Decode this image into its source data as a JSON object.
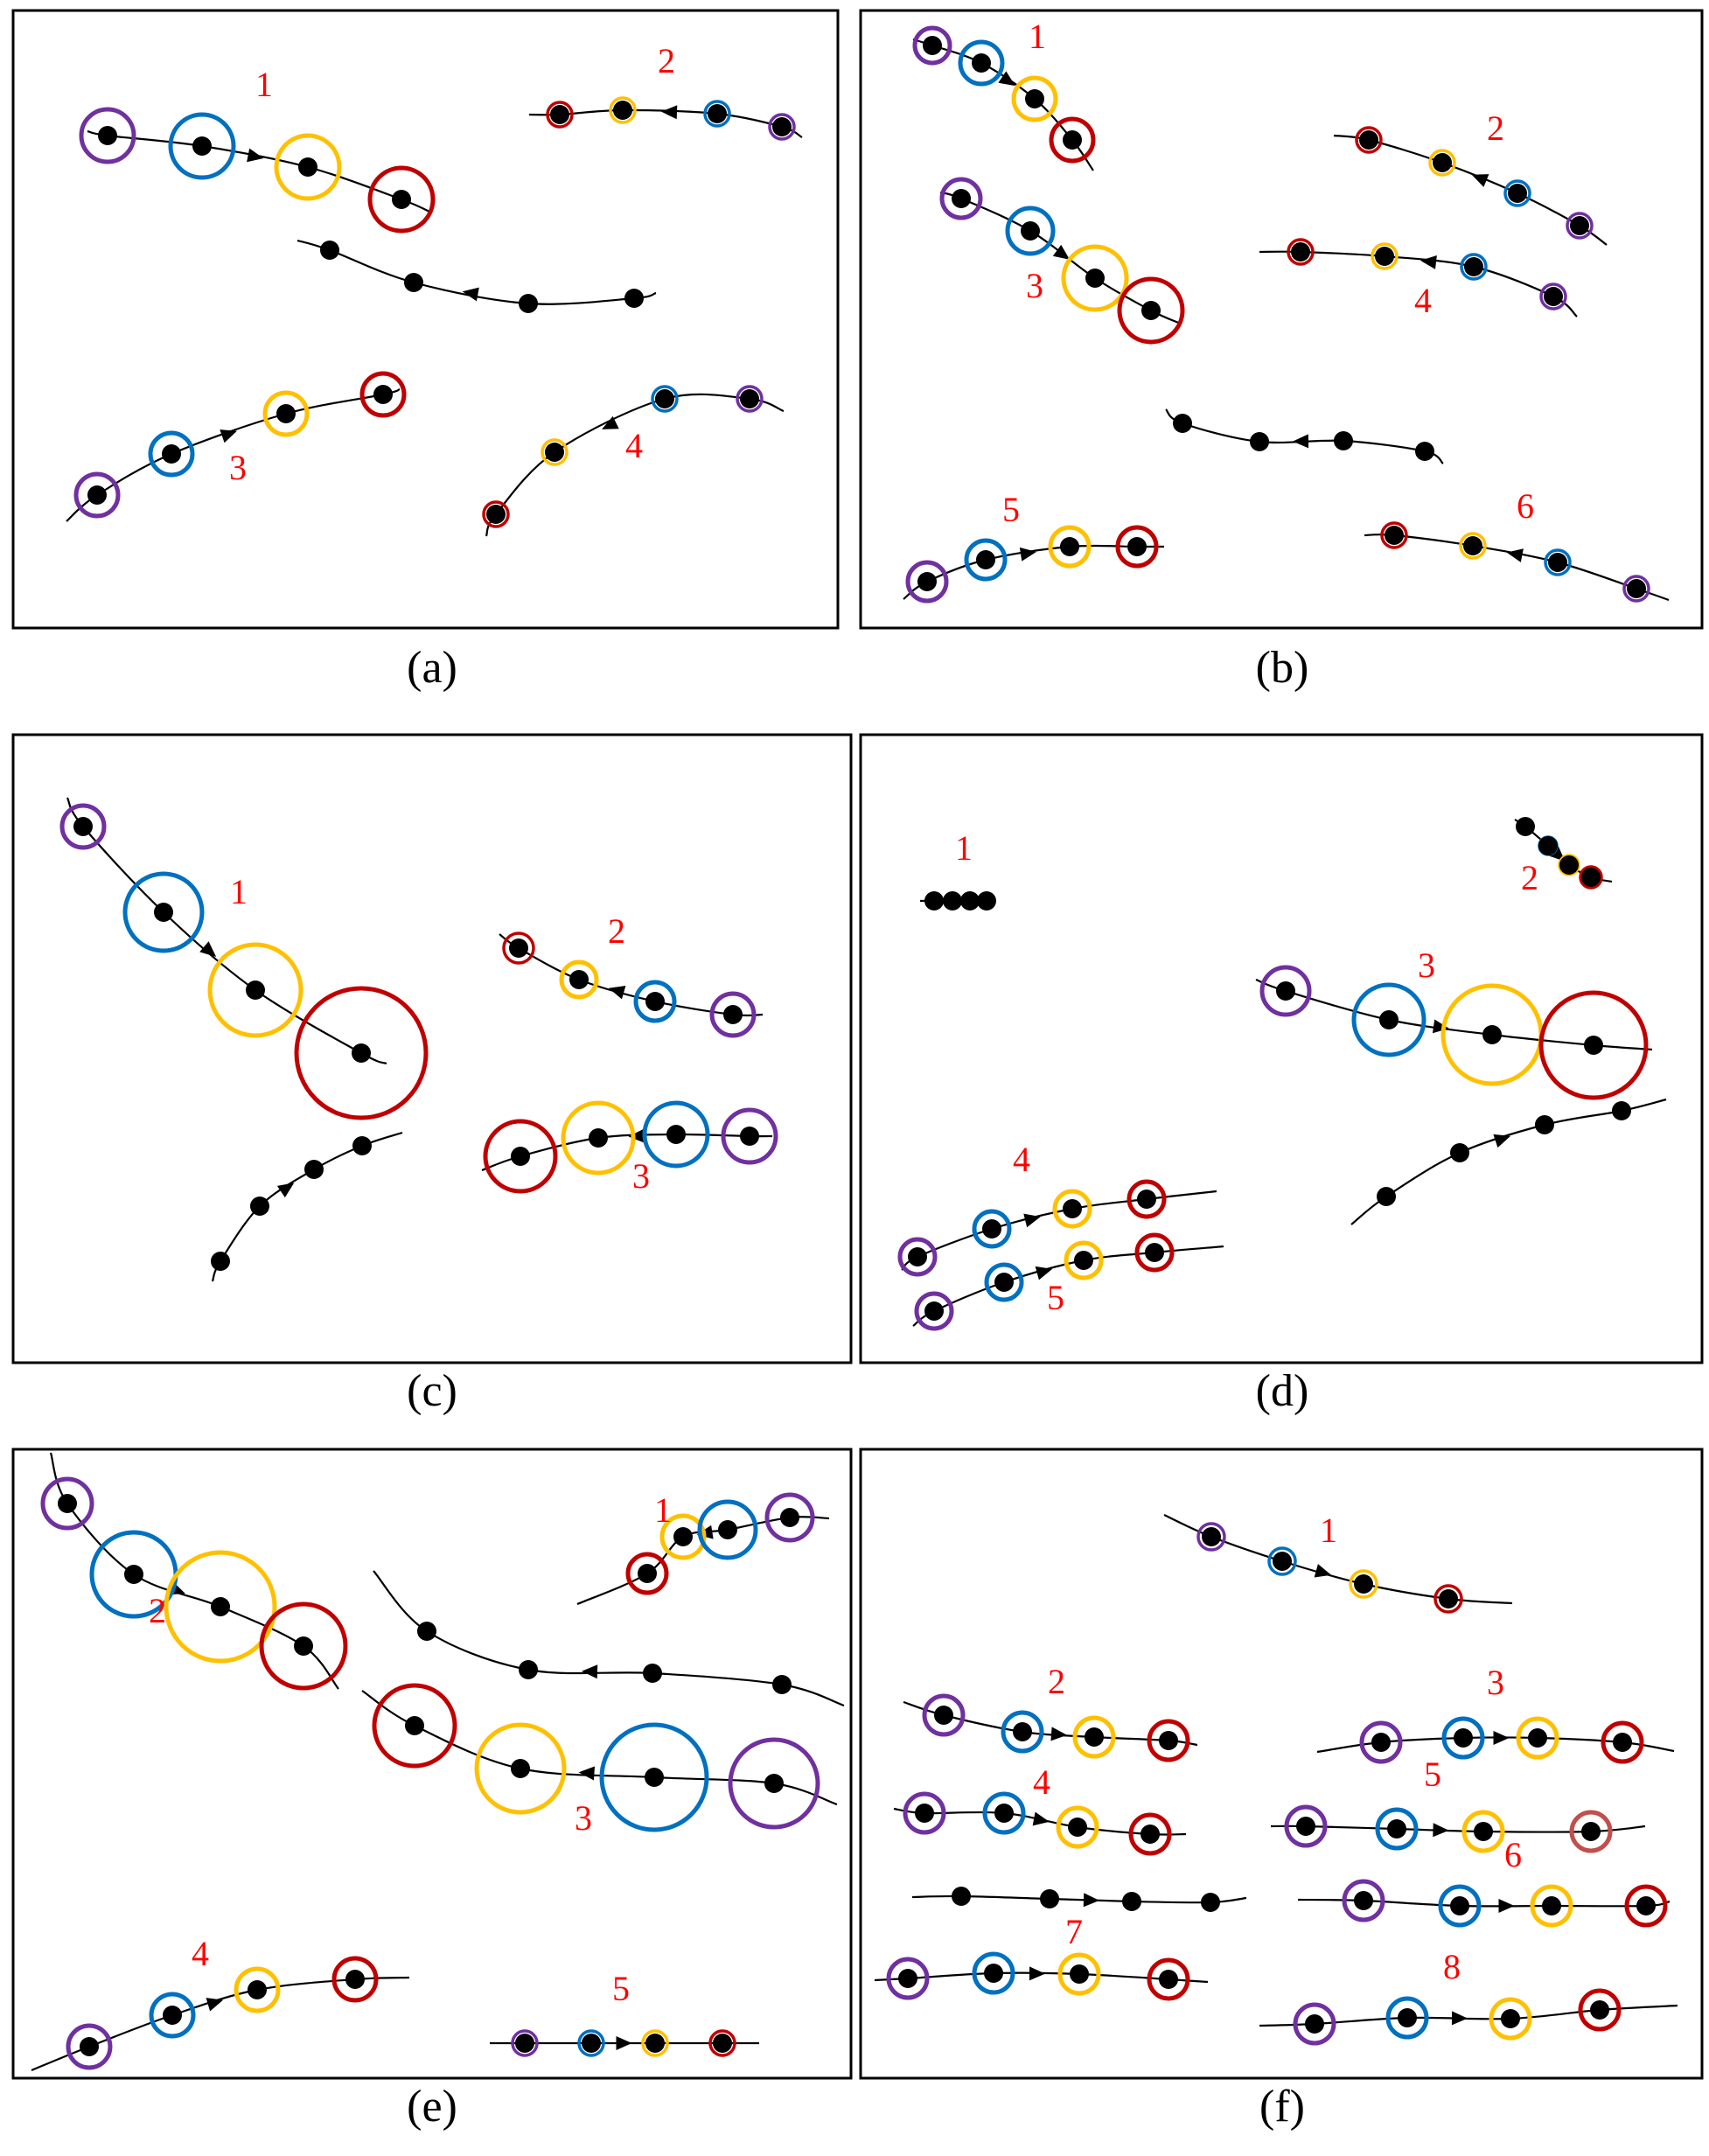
{
  "colors": {
    "purple": "#7030A0",
    "blue": "#0070C0",
    "yellow": "#FFC000",
    "red": "#C00000",
    "brown_red": "#C0504D",
    "label": "#FF0000",
    "line": "#000000"
  },
  "panels": [
    {
      "caption": "(a)",
      "tracks": [
        {
          "label": "1",
          "direction": "forward",
          "circles": [
            "purple",
            "blue",
            "yellow",
            "red"
          ]
        },
        {
          "label": "2",
          "direction": "backward",
          "circles": [
            "red",
            "yellow",
            "blue",
            "purple"
          ]
        },
        {
          "label": "",
          "direction": "backward",
          "circles": []
        },
        {
          "label": "3",
          "direction": "forward",
          "circles": [
            "purple",
            "blue",
            "yellow",
            "red"
          ]
        },
        {
          "label": "4",
          "direction": "backward",
          "circles": [
            "red",
            "yellow",
            "blue",
            "purple"
          ]
        }
      ]
    },
    {
      "caption": "(b)",
      "tracks": [
        {
          "label": "1",
          "direction": "forward",
          "circles": [
            "purple",
            "blue",
            "yellow",
            "red"
          ]
        },
        {
          "label": "2",
          "direction": "backward",
          "circles": [
            "red",
            "yellow",
            "blue",
            "purple"
          ]
        },
        {
          "label": "3",
          "direction": "forward",
          "circles": [
            "purple",
            "blue",
            "yellow",
            "red"
          ]
        },
        {
          "label": "4",
          "direction": "backward",
          "circles": [
            "red",
            "yellow",
            "blue",
            "purple"
          ]
        },
        {
          "label": "",
          "direction": "backward",
          "circles": []
        },
        {
          "label": "5",
          "direction": "forward",
          "circles": [
            "purple",
            "blue",
            "yellow",
            "red"
          ]
        },
        {
          "label": "6",
          "direction": "backward",
          "circles": [
            "red",
            "yellow",
            "blue",
            "purple"
          ]
        }
      ]
    },
    {
      "caption": "(c)",
      "tracks": [
        {
          "label": "1",
          "direction": "forward",
          "circles": [
            "purple",
            "blue",
            "yellow",
            "red"
          ]
        },
        {
          "label": "2",
          "direction": "backward",
          "circles": [
            "red",
            "yellow",
            "blue",
            "purple"
          ]
        },
        {
          "label": "",
          "direction": "forward",
          "circles": []
        },
        {
          "label": "3",
          "direction": "backward",
          "circles": [
            "red",
            "yellow",
            "blue",
            "purple"
          ]
        }
      ]
    },
    {
      "caption": "(d)",
      "tracks": [
        {
          "label": "1",
          "direction": "none",
          "circles": []
        },
        {
          "label": "2",
          "direction": "forward",
          "circles": [
            "purple",
            "blue",
            "yellow",
            "red"
          ]
        },
        {
          "label": "3",
          "direction": "forward",
          "circles": [
            "purple",
            "blue",
            "yellow",
            "red"
          ]
        },
        {
          "label": "",
          "direction": "forward",
          "circles": []
        },
        {
          "label": "4",
          "direction": "forward",
          "circles": [
            "purple",
            "blue",
            "yellow",
            "red"
          ]
        },
        {
          "label": "5",
          "direction": "forward",
          "circles": [
            "purple",
            "blue",
            "yellow",
            "red"
          ]
        }
      ]
    },
    {
      "caption": "(e)",
      "tracks": [
        {
          "label": "2",
          "direction": "forward",
          "circles": [
            "purple",
            "blue",
            "yellow",
            "red"
          ]
        },
        {
          "label": "1",
          "direction": "backward",
          "circles": [
            "red",
            "yellow",
            "blue",
            "purple"
          ]
        },
        {
          "label": "",
          "direction": "backward",
          "circles": []
        },
        {
          "label": "3",
          "direction": "backward",
          "circles": [
            "red",
            "yellow",
            "blue",
            "purple"
          ]
        },
        {
          "label": "4",
          "direction": "forward",
          "circles": [
            "purple",
            "blue",
            "yellow",
            "red"
          ]
        },
        {
          "label": "5",
          "direction": "forward",
          "circles": [
            "purple",
            "blue",
            "yellow",
            "red"
          ]
        }
      ]
    },
    {
      "caption": "(f)",
      "tracks": [
        {
          "label": "1",
          "direction": "forward",
          "circles": [
            "purple",
            "blue",
            "yellow",
            "red"
          ]
        },
        {
          "label": "2",
          "direction": "forward",
          "circles": [
            "purple",
            "blue",
            "yellow",
            "red"
          ]
        },
        {
          "label": "3",
          "direction": "forward",
          "circles": [
            "purple",
            "blue",
            "yellow",
            "red"
          ]
        },
        {
          "label": "4",
          "direction": "forward",
          "circles": [
            "purple",
            "blue",
            "yellow",
            "red"
          ]
        },
        {
          "label": "5",
          "direction": "forward",
          "circles": [
            "purple",
            "blue",
            "yellow",
            "brown_red"
          ]
        },
        {
          "label": "",
          "direction": "forward",
          "circles": []
        },
        {
          "label": "6",
          "direction": "forward",
          "circles": [
            "purple",
            "blue",
            "yellow",
            "red"
          ]
        },
        {
          "label": "7",
          "direction": "forward",
          "circles": [
            "purple",
            "blue",
            "yellow",
            "red"
          ]
        },
        {
          "label": "8",
          "direction": "forward",
          "circles": [
            "purple",
            "blue",
            "yellow",
            "red"
          ]
        }
      ]
    }
  ]
}
